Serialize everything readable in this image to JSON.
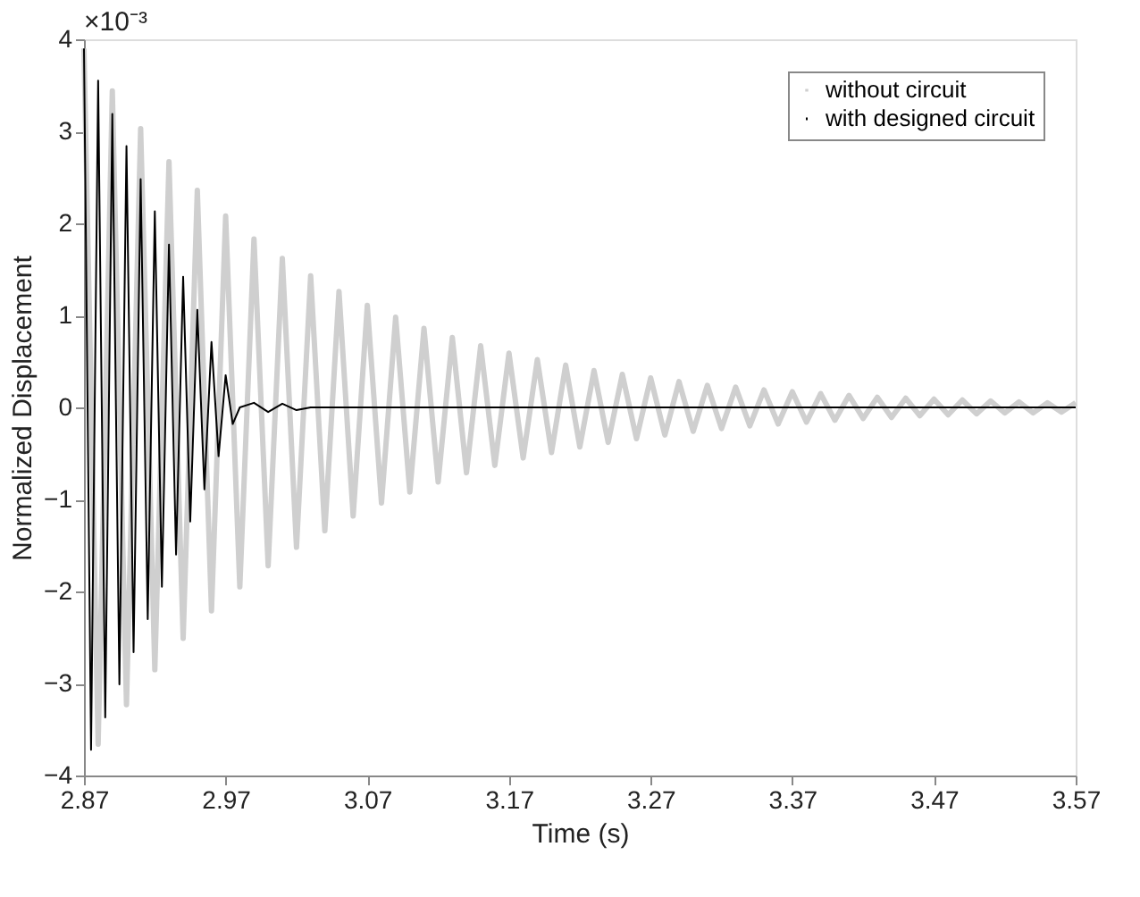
{
  "chart_data": {
    "type": "line",
    "xlabel": "Time (s)",
    "ylabel": "Normalized Displacement",
    "annotations": [
      "×10⁻³"
    ],
    "xlim": [
      2.87,
      3.57
    ],
    "xticks": [
      2.87,
      2.97,
      3.07,
      3.17,
      3.27,
      3.37,
      3.47,
      3.57
    ],
    "ylim": [
      -4,
      4
    ],
    "yticks": [
      -4,
      -3,
      -2,
      -1,
      0,
      1,
      2,
      3,
      4
    ],
    "grid": false,
    "legend": "top right",
    "line_style": "solid",
    "marker": "none",
    "series": [
      {
        "name": "without circuit",
        "color": "#cfcfcf",
        "x": [
          2.87,
          2.88,
          2.89,
          2.9,
          2.91,
          2.92,
          2.93,
          2.94,
          2.95,
          2.96,
          2.97,
          2.98,
          2.99,
          3.0,
          3.01,
          3.02,
          3.03,
          3.04,
          3.05,
          3.06,
          3.07,
          3.08,
          3.09,
          3.1,
          3.11,
          3.12,
          3.13,
          3.14,
          3.15,
          3.16,
          3.17,
          3.18,
          3.19,
          3.2,
          3.21,
          3.22,
          3.23,
          3.24,
          3.25,
          3.26,
          3.27,
          3.28,
          3.29,
          3.3,
          3.31,
          3.32,
          3.33,
          3.34,
          3.35,
          3.36,
          3.37,
          3.38,
          3.39,
          3.4,
          3.41,
          3.42,
          3.43,
          3.44,
          3.45,
          3.46,
          3.47,
          3.48,
          3.49,
          3.5,
          3.51,
          3.52,
          3.53,
          3.54,
          3.55,
          3.56,
          3.57
        ],
        "values": [
          3.9,
          -3.66,
          3.44,
          -3.23,
          3.03,
          -2.85,
          2.67,
          -2.51,
          2.36,
          -2.21,
          2.08,
          -1.95,
          1.83,
          -1.72,
          1.62,
          -1.52,
          1.43,
          -1.34,
          1.26,
          -1.18,
          1.11,
          -1.04,
          0.98,
          -0.92,
          0.86,
          -0.81,
          0.76,
          -0.71,
          0.67,
          -0.63,
          0.59,
          -0.55,
          0.52,
          -0.49,
          0.46,
          -0.43,
          0.4,
          -0.38,
          0.36,
          -0.34,
          0.32,
          -0.3,
          0.28,
          -0.26,
          0.24,
          -0.23,
          0.22,
          -0.2,
          0.19,
          -0.18,
          0.17,
          -0.16,
          0.15,
          -0.14,
          0.13,
          -0.12,
          0.11,
          -0.11,
          0.1,
          -0.09,
          0.09,
          -0.08,
          0.08,
          -0.07,
          0.07,
          -0.06,
          0.06,
          -0.06,
          0.05,
          -0.05,
          0.05
        ]
      },
      {
        "name": "with designed circuit",
        "color": "#000000",
        "x": [
          2.87,
          2.875,
          2.88,
          2.885,
          2.89,
          2.895,
          2.9,
          2.905,
          2.91,
          2.915,
          2.92,
          2.925,
          2.93,
          2.935,
          2.94,
          2.945,
          2.95,
          2.955,
          2.96,
          2.965,
          2.97,
          2.975,
          2.98,
          2.99,
          3.0,
          3.01,
          3.02,
          3.03,
          3.57
        ],
        "values": [
          3.9,
          -3.72,
          3.55,
          -3.37,
          3.19,
          -3.01,
          2.84,
          -2.66,
          2.48,
          -2.3,
          2.13,
          -1.95,
          1.77,
          -1.6,
          1.42,
          -1.24,
          1.06,
          -0.89,
          0.71,
          -0.53,
          0.35,
          -0.18,
          0,
          0.05,
          -0.05,
          0.04,
          -0.03,
          0,
          0
        ]
      }
    ]
  }
}
